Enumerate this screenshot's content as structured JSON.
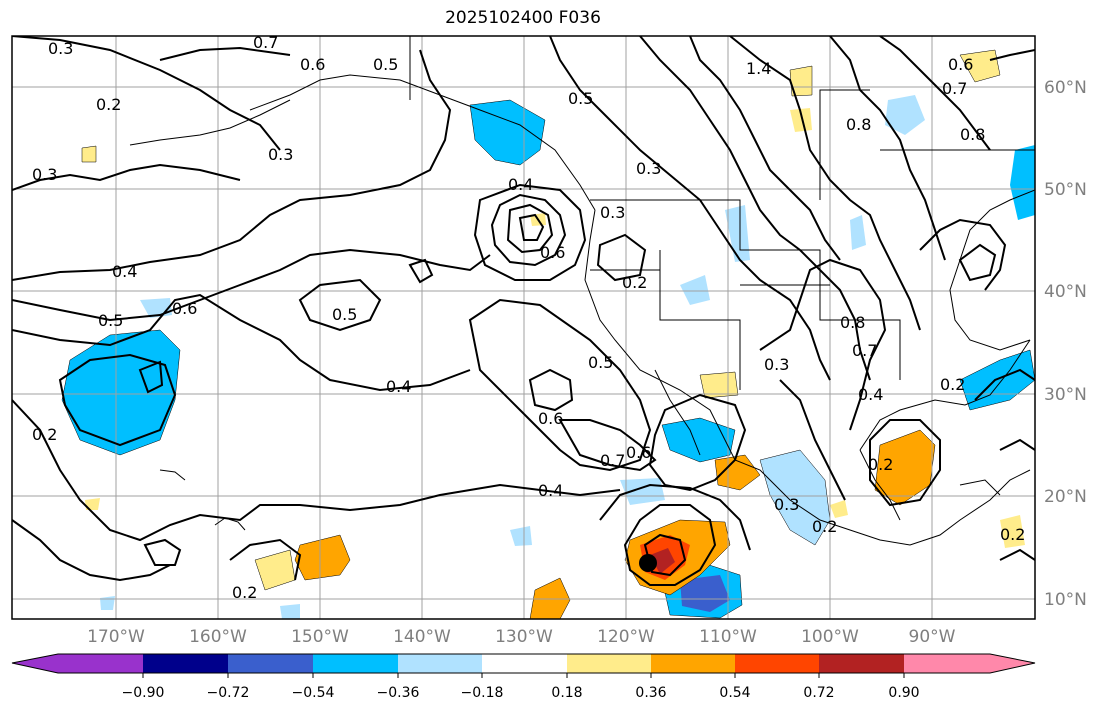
{
  "title": "2025102400 F036",
  "lat_labels": [
    "60°N",
    "50°N",
    "40°N",
    "30°N",
    "20°N",
    "10°N"
  ],
  "lon_labels": [
    "170°W",
    "160°W",
    "150°W",
    "140°W",
    "130°W",
    "120°W",
    "110°W",
    "100°W",
    "90°W"
  ],
  "colorbar": {
    "ticks": [
      "−0.90",
      "−0.72",
      "−0.54",
      "−0.36",
      "−0.18",
      "0.18",
      "0.36",
      "0.54",
      "0.72",
      "0.90"
    ],
    "colors": [
      "#9932cc",
      "#00008b",
      "#3a5fcd",
      "#00bfff",
      "#b0e2ff",
      "#ffffff",
      "#ffec8b",
      "#ffa500",
      "#ff4500",
      "#b22222",
      "#ff88aa"
    ]
  },
  "contour_labels": [
    "0.3",
    "0.7",
    "0.5",
    "0.6",
    "0.2",
    "0.3",
    "0.5",
    "1.4",
    "0.7",
    "0.6",
    "0.8",
    "0.8",
    "0.3",
    "0.4",
    "0.3",
    "0.6",
    "0.2",
    "0.4",
    "0.5",
    "0.6",
    "0.5",
    "0.4",
    "0.6",
    "0.7",
    "0.6",
    "0.2",
    "0.4",
    "0.5",
    "0.8",
    "0.7",
    "0.4",
    "0.3",
    "0.2",
    "0.2",
    "0.3",
    "0.2",
    "0.2",
    "0.3",
    "0.2"
  ]
}
